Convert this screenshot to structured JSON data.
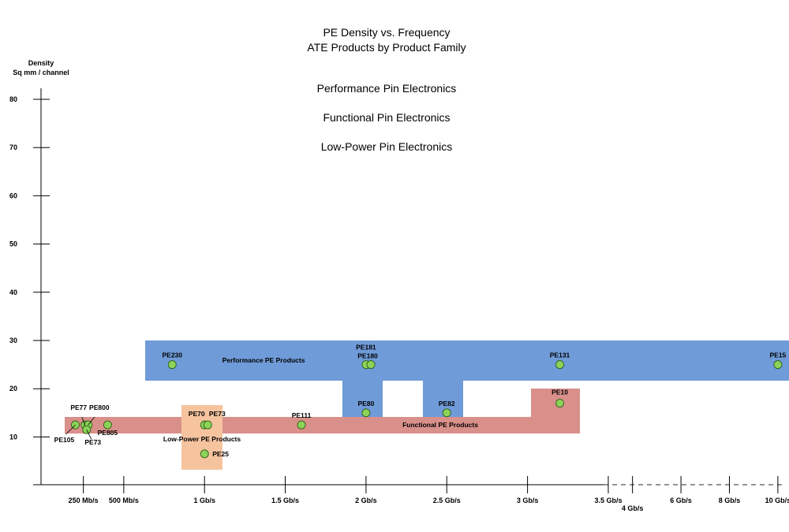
{
  "chart_data": {
    "type": "scatter",
    "title": "PE Density vs. Frequency",
    "subtitle": "ATE Products by Product Family",
    "ylabel_line1": "Density",
    "ylabel_line2": "Sq mm / channel",
    "xlabel": "",
    "ylim": [
      0,
      80
    ],
    "y_ticks": [
      80,
      70,
      60,
      50,
      40,
      30,
      20,
      10
    ],
    "x_ticks": [
      {
        "label": "250 Mb/s",
        "x": 0.25
      },
      {
        "label": "500 Mb/s",
        "x": 0.5
      },
      {
        "label": "1 Gb/s",
        "x": 1.0
      },
      {
        "label": "1.5 Gb/s",
        "x": 1.5
      },
      {
        "label": "2 Gb/s",
        "x": 2.0
      },
      {
        "label": "2.5 Gb/s",
        "x": 2.5
      },
      {
        "label": "3 Gb/s",
        "x": 3.0
      },
      {
        "label": "3.5 Gb/s",
        "x": 3.5
      },
      {
        "label": "4 Gb/s",
        "x": 3.65
      },
      {
        "label": "6 Gb/s",
        "x": 3.95
      },
      {
        "label": "8 Gb/s",
        "x": 4.25
      },
      {
        "label": "10 Gb/s",
        "x": 4.55
      }
    ],
    "legend": [
      "Performance Pin Electronics",
      "Functional Pin Electronics",
      "Low-Power Pin Electronics"
    ],
    "regions": [
      {
        "name": "Performance PE Products",
        "color": "#6f9bd8"
      },
      {
        "name": "Functional PE Products",
        "color": "#d9908a"
      },
      {
        "name": "Low-Power PE Products",
        "color": "#f5c49f"
      }
    ],
    "points": [
      {
        "name": "PE105",
        "x": 0.2,
        "y": 12.5
      },
      {
        "name": "PE77",
        "x": 0.26,
        "y": 12.5
      },
      {
        "name": "PE800",
        "x": 0.28,
        "y": 12.5
      },
      {
        "name": "PE73",
        "x": 0.27,
        "y": 11.5
      },
      {
        "name": "PE805",
        "x": 0.4,
        "y": 12.5
      },
      {
        "name": "PE230",
        "x": 0.8,
        "y": 25
      },
      {
        "name": "PE70",
        "x": 1.0,
        "y": 12.5
      },
      {
        "name": "PE73",
        "x": 1.02,
        "y": 12.5
      },
      {
        "name": "PE25",
        "x": 1.0,
        "y": 6.5
      },
      {
        "name": "PE111",
        "x": 1.6,
        "y": 12.5
      },
      {
        "name": "PE181",
        "x": 2.0,
        "y": 25
      },
      {
        "name": "PE180",
        "x": 2.03,
        "y": 25
      },
      {
        "name": "PE80",
        "x": 2.0,
        "y": 15
      },
      {
        "name": "PE82",
        "x": 2.5,
        "y": 15
      },
      {
        "name": "PE131",
        "x": 3.2,
        "y": 25
      },
      {
        "name": "PE10",
        "x": 3.2,
        "y": 17
      },
      {
        "name": "PE15",
        "x": 4.55,
        "y": 25
      }
    ],
    "point_color": "#8cd35a",
    "grid": false
  }
}
